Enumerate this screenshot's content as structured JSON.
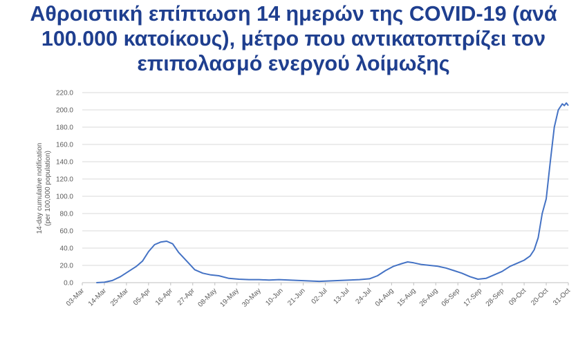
{
  "title_lines": [
    "Αθροιστική επίπτωση 14 ημερών της COVID-19 (ανά",
    "100.000 κατοίκους), μέτρο που αντικατοπτρίζει τον",
    "επιπολασμό ενεργού λοίμωξης"
  ],
  "colors": {
    "title": "#1f3f8f",
    "line": "#4472c4",
    "grid": "#d9d9d9",
    "axis_text": "#595959"
  },
  "chart_data": {
    "type": "line",
    "ylabel_lines": [
      "14-day cumulative notification",
      "(per 100,000 population)"
    ],
    "xlabel": "",
    "ylim": [
      0,
      220
    ],
    "yticks": [
      "0.0",
      "20.0",
      "40.0",
      "60.0",
      "80.0",
      "100.0",
      "120.0",
      "140.0",
      "160.0",
      "180.0",
      "200.0",
      "220.0"
    ],
    "xlim": [
      "2020-03-03",
      "2020-10-31"
    ],
    "xticks": [
      "03-Mar",
      "14-Mar",
      "25-Mar",
      "05-Apr",
      "16-Apr",
      "27-Apr",
      "08-May",
      "19-May",
      "30-May",
      "10-Jun",
      "21-Jun",
      "02-Jul",
      "13-Jul",
      "24-Jul",
      "04-Aug",
      "15-Aug",
      "26-Aug",
      "06-Sep",
      "17-Sep",
      "28-Sep",
      "09-Oct",
      "20-Oct",
      "31-Oct"
    ],
    "grid": true,
    "legend": "none",
    "series": [
      {
        "x": [
          "2020-03-10",
          "2020-03-14",
          "2020-03-18",
          "2020-03-22",
          "2020-03-26",
          "2020-03-30",
          "2020-04-02",
          "2020-04-05",
          "2020-04-08",
          "2020-04-11",
          "2020-04-14",
          "2020-04-17",
          "2020-04-20",
          "2020-04-24",
          "2020-04-28",
          "2020-05-02",
          "2020-05-06",
          "2020-05-10",
          "2020-05-15",
          "2020-05-20",
          "2020-05-25",
          "2020-05-30",
          "2020-06-04",
          "2020-06-09",
          "2020-06-14",
          "2020-06-19",
          "2020-06-24",
          "2020-06-29",
          "2020-07-04",
          "2020-07-09",
          "2020-07-14",
          "2020-07-19",
          "2020-07-24",
          "2020-07-28",
          "2020-08-01",
          "2020-08-05",
          "2020-08-09",
          "2020-08-12",
          "2020-08-15",
          "2020-08-19",
          "2020-08-23",
          "2020-08-27",
          "2020-08-31",
          "2020-09-04",
          "2020-09-08",
          "2020-09-12",
          "2020-09-16",
          "2020-09-20",
          "2020-09-24",
          "2020-09-28",
          "2020-10-02",
          "2020-10-06",
          "2020-10-09",
          "2020-10-12",
          "2020-10-14",
          "2020-10-16",
          "2020-10-18",
          "2020-10-20",
          "2020-10-22",
          "2020-10-24",
          "2020-10-26",
          "2020-10-28",
          "2020-10-29",
          "2020-10-30",
          "2020-10-31"
        ],
        "values": [
          0.0,
          0.5,
          2.5,
          7.0,
          13.0,
          19.0,
          25.0,
          36.0,
          44.0,
          47.0,
          48.0,
          45.0,
          35.0,
          25.0,
          15.0,
          11.0,
          9.0,
          8.0,
          5.0,
          4.0,
          3.5,
          3.5,
          3.0,
          3.5,
          3.0,
          2.5,
          2.0,
          1.5,
          2.0,
          2.5,
          3.0,
          3.5,
          4.5,
          8.0,
          14.0,
          19.0,
          22.0,
          24.0,
          23.0,
          21.0,
          20.0,
          19.0,
          17.0,
          14.0,
          11.0,
          7.0,
          4.0,
          5.0,
          9.0,
          13.0,
          19.0,
          23.0,
          26.0,
          31.0,
          38.0,
          52.0,
          80.0,
          97.0,
          140.0,
          180.0,
          200.0,
          207.0,
          205.0,
          208.0,
          205.0
        ]
      }
    ]
  }
}
